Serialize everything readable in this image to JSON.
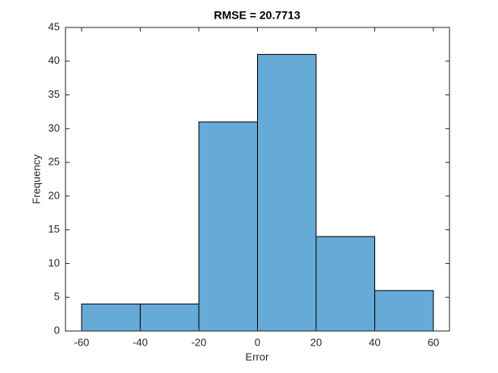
{
  "chart_data": {
    "type": "histogram",
    "title": "RMSE = 20.7713",
    "xlabel": "Error",
    "ylabel": "Frequency",
    "bins": [
      -60,
      -40,
      -20,
      0,
      20,
      40,
      60
    ],
    "values": [
      4,
      4,
      31,
      41,
      14,
      6
    ],
    "color": "#66aad7",
    "edgecolor": "#000000",
    "xlim": [
      -65.5,
      65.5
    ],
    "xticks": [
      -60,
      -40,
      -20,
      0,
      20,
      40,
      60
    ],
    "ylim": [
      0,
      45
    ],
    "yticks": [
      0,
      5,
      10,
      15,
      20,
      25,
      30,
      35,
      40,
      45
    ]
  }
}
